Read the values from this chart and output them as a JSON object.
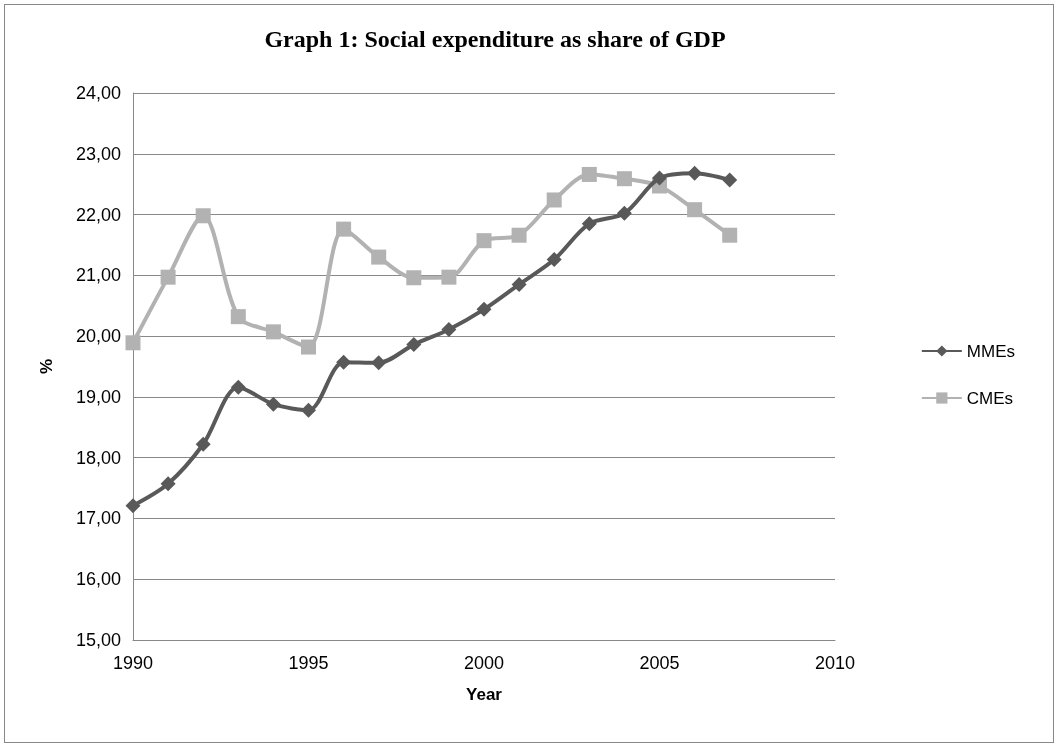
{
  "chart_data": {
    "type": "line",
    "title": "Graph 1: Social expenditure as share of GDP",
    "xlabel": "Year",
    "ylabel": "%",
    "x": [
      1990,
      1991,
      1992,
      1993,
      1994,
      1995,
      1996,
      1997,
      1998,
      1999,
      2000,
      2001,
      2002,
      2003,
      2004,
      2005,
      2006,
      2007
    ],
    "series": [
      {
        "name": "MMEs",
        "color": "#595959",
        "marker": "diamond",
        "values": [
          17.21,
          17.57,
          18.22,
          19.16,
          18.88,
          18.78,
          19.57,
          19.56,
          19.86,
          20.11,
          20.44,
          20.85,
          21.26,
          21.85,
          22.02,
          22.6,
          22.68,
          22.57
        ]
      },
      {
        "name": "CMEs",
        "color": "#b2b2b2",
        "marker": "square",
        "values": [
          19.89,
          20.97,
          21.98,
          20.32,
          20.07,
          19.82,
          21.76,
          21.3,
          20.96,
          20.97,
          21.57,
          21.66,
          22.24,
          22.66,
          22.59,
          22.47,
          22.08,
          21.66
        ]
      }
    ],
    "xlim": [
      1990,
      2010
    ],
    "xticks": [
      1990,
      1995,
      2000,
      2005,
      2010
    ],
    "ylim": [
      15,
      24
    ],
    "yticks": [
      {
        "value": 15,
        "label": "15,00"
      },
      {
        "value": 16,
        "label": "16,00"
      },
      {
        "value": 17,
        "label": "17,00"
      },
      {
        "value": 18,
        "label": "18,00"
      },
      {
        "value": 19,
        "label": "19,00"
      },
      {
        "value": 20,
        "label": "20,00"
      },
      {
        "value": 21,
        "label": "21,00"
      },
      {
        "value": 22,
        "label": "22,00"
      },
      {
        "value": 23,
        "label": "23,00"
      },
      {
        "value": 24,
        "label": "24,00"
      }
    ],
    "grid": "y",
    "legend": "right",
    "line_style": "solid"
  }
}
